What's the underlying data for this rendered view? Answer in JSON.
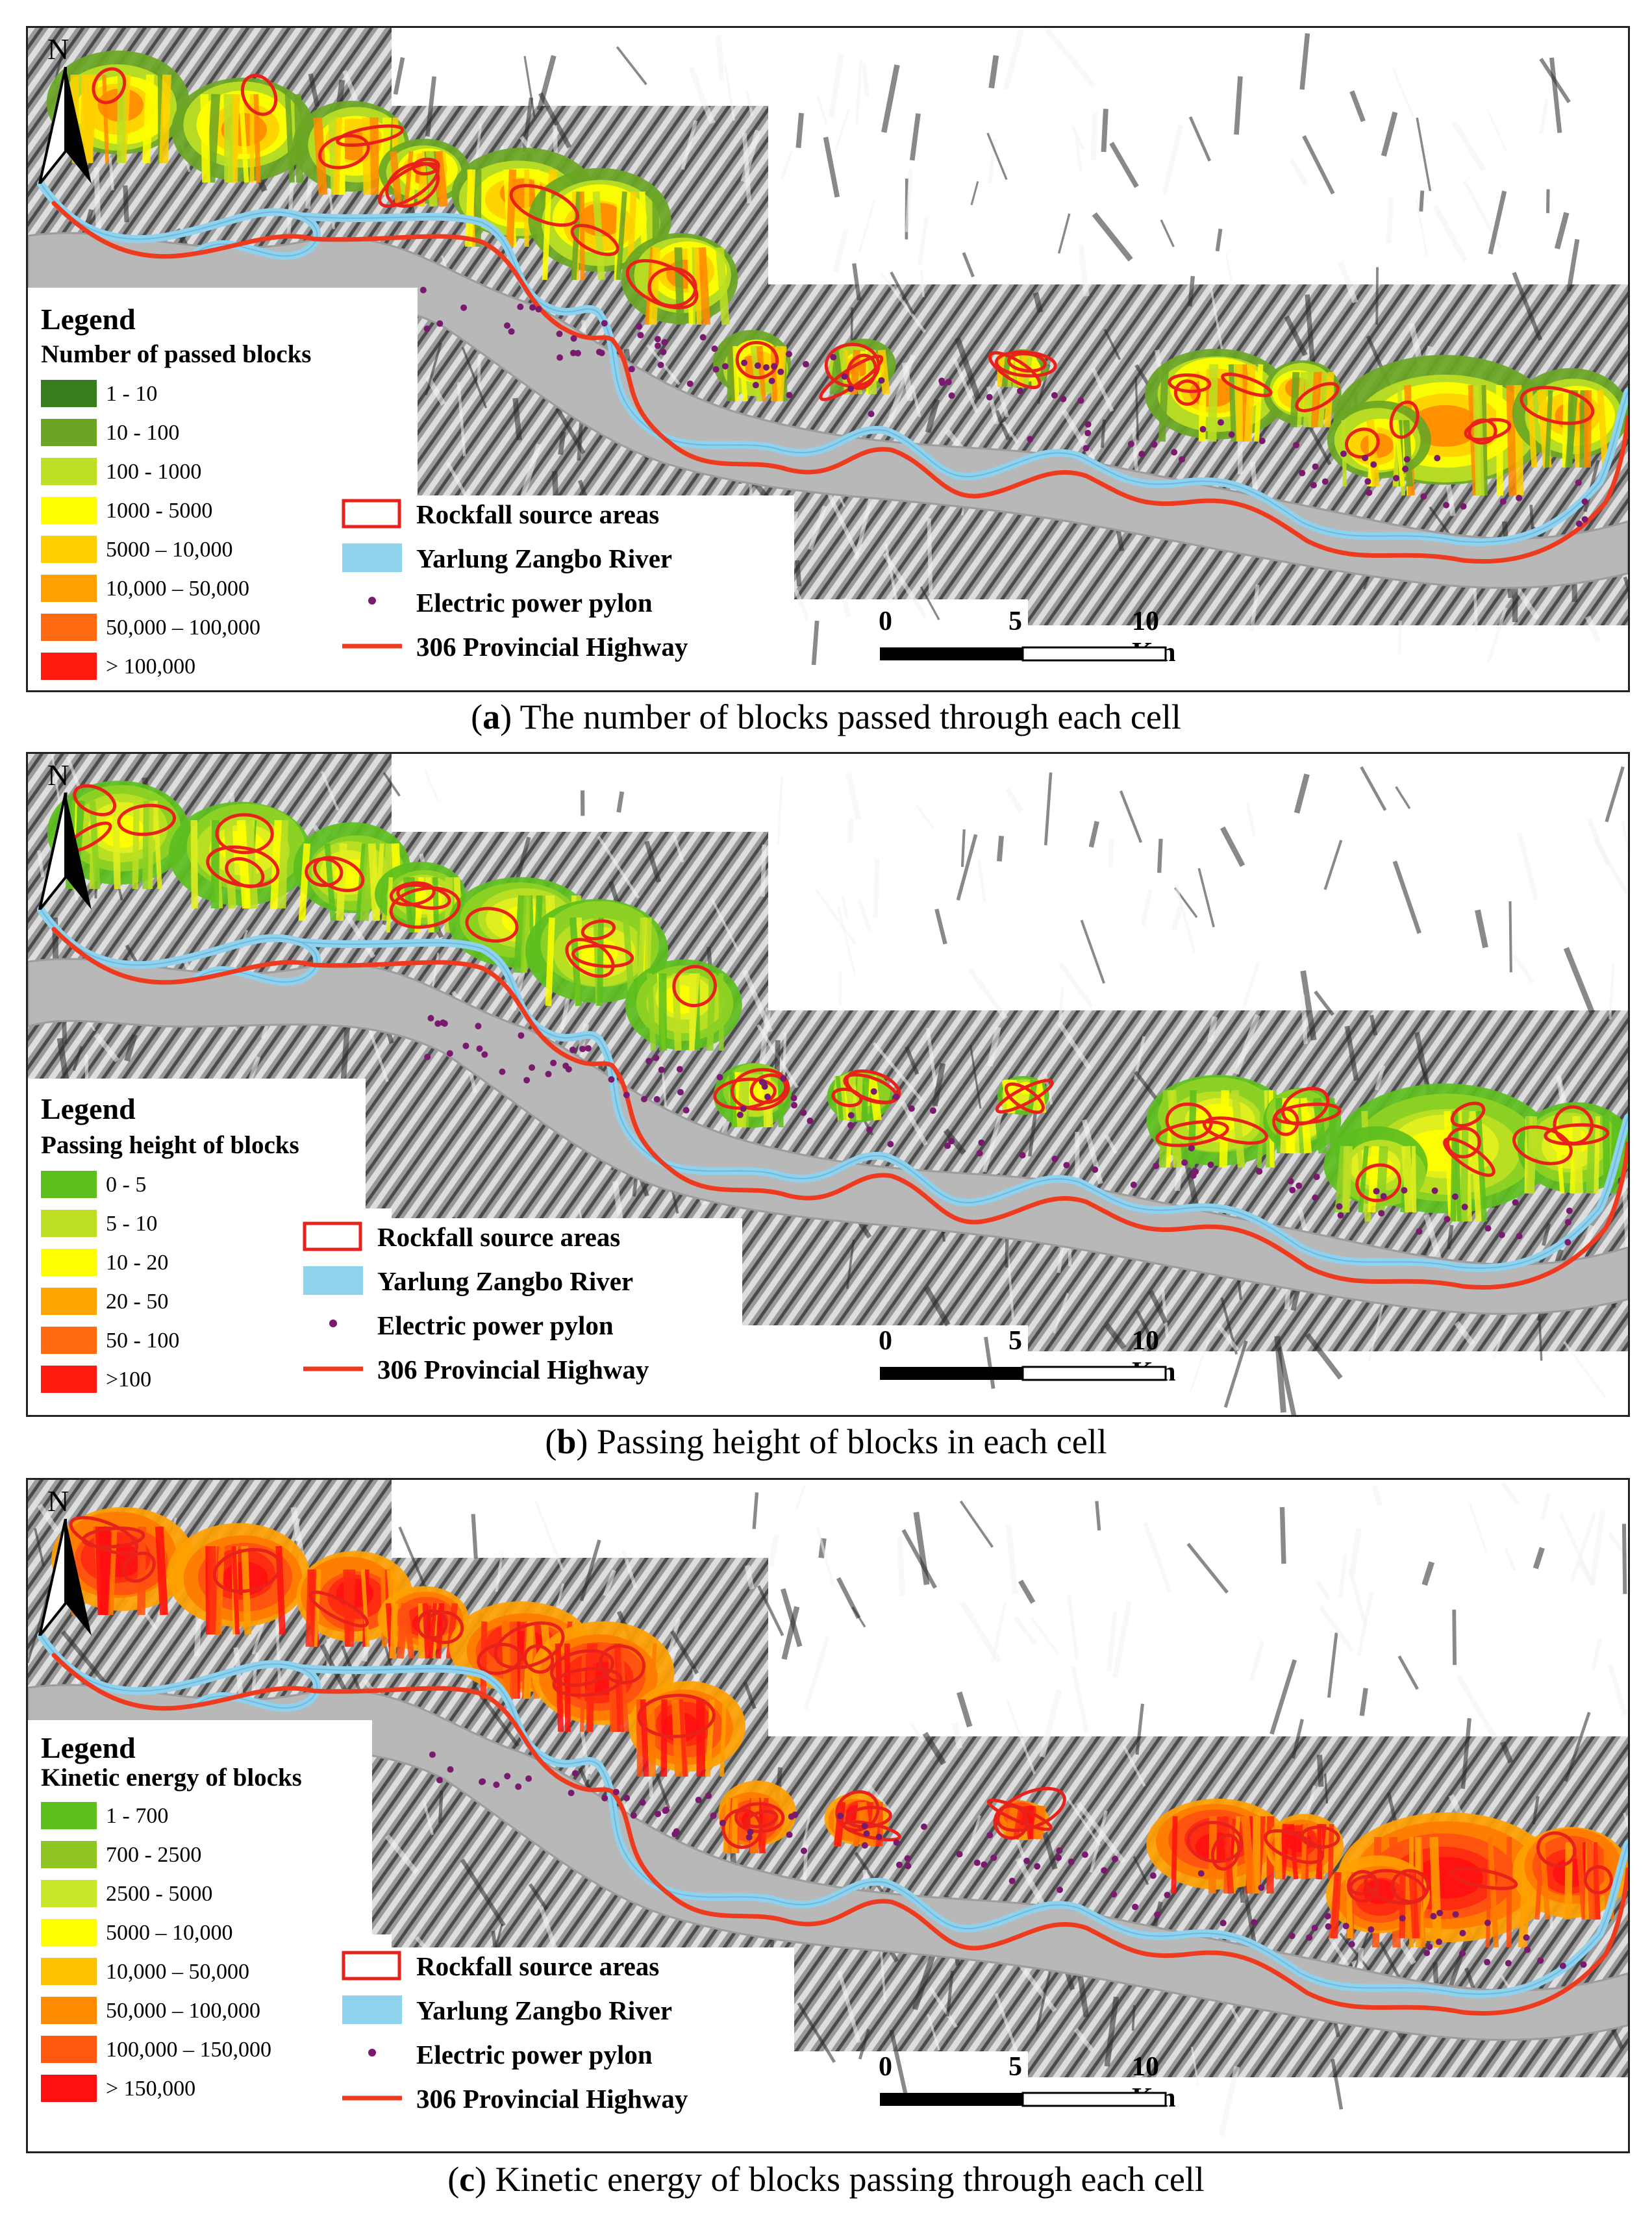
{
  "panels": [
    {
      "id": "a",
      "legend": {
        "title": "Legend",
        "subtitle": "Number of passed blocks",
        "classes": [
          {
            "label": "1 - 10",
            "color": "#3a7d1e"
          },
          {
            "label": "10 - 100",
            "color": "#6aa624"
          },
          {
            "label": "100 - 1000",
            "color": "#bde024"
          },
          {
            "label": "1000 - 5000",
            "color": "#ffff00"
          },
          {
            "label": "5000 – 10,000",
            "color": "#ffd000"
          },
          {
            "label": "10,000 – 50,000",
            "color": "#ffa000"
          },
          {
            "label": "50,000 – 100,000",
            "color": "#ff6a10"
          },
          {
            "label": "> 100,000",
            "color": "#ff1a10"
          }
        ]
      },
      "caption": {
        "letter": "a",
        "text": " The number of blocks passed through each cell"
      },
      "ramp": [
        "#6aa624",
        "#bde024",
        "#ffff00",
        "#ffd000",
        "#ff8a00"
      ]
    },
    {
      "id": "b",
      "legend": {
        "title": "Legend",
        "subtitle": "Passing height of blocks",
        "classes": [
          {
            "label": "0 - 5",
            "color": "#5cbf1e"
          },
          {
            "label": "5 - 10",
            "color": "#bde024"
          },
          {
            "label": "10 - 20",
            "color": "#ffff00"
          },
          {
            "label": "20 - 50",
            "color": "#ffa500"
          },
          {
            "label": "50 - 100",
            "color": "#ff6a10"
          },
          {
            "label": ">100",
            "color": "#ff1a10"
          }
        ]
      },
      "caption": {
        "letter": "b",
        "text": " Passing height of blocks in each cell"
      },
      "ramp": [
        "#5cbf1e",
        "#8fd224",
        "#bde024",
        "#e4f020",
        "#ffff00"
      ]
    },
    {
      "id": "c",
      "legend": {
        "title": "Legend",
        "subtitle": "Kinetic energy of blocks",
        "classes": [
          {
            "label": "1 - 700",
            "color": "#5cbf1e"
          },
          {
            "label": "700 - 2500",
            "color": "#8fc624"
          },
          {
            "label": "2500 - 5000",
            "color": "#c8e82a"
          },
          {
            "label": "5000 – 10,000",
            "color": "#ffff00"
          },
          {
            "label": "10,000 – 50,000",
            "color": "#ffc000"
          },
          {
            "label": "50,000 – 100,000",
            "color": "#ff8c00"
          },
          {
            "label": "100,000 – 150,000",
            "color": "#ff5a10"
          },
          {
            "label": "> 150,000",
            "color": "#ff1010"
          }
        ]
      },
      "caption": {
        "letter": "c",
        "text": " Kinetic energy of blocks passing through each cell"
      },
      "ramp": [
        "#ffa000",
        "#ff7a00",
        "#ff5010",
        "#ff2a10",
        "#ff1010"
      ]
    }
  ],
  "symbols": {
    "source_areas": {
      "label": "Rockfall source areas",
      "color": "#e8221a"
    },
    "river": {
      "label": "Yarlung Zangbo River",
      "color": "#8fd2ee"
    },
    "pylon": {
      "label": "Electric power pylon",
      "color": "#7a1a6e"
    },
    "highway": {
      "label": "306 Provincial Highway",
      "color": "#ee3a1e"
    }
  },
  "north": "N",
  "scale_bar": {
    "ticks": [
      "0",
      "5",
      "10 Km"
    ]
  }
}
